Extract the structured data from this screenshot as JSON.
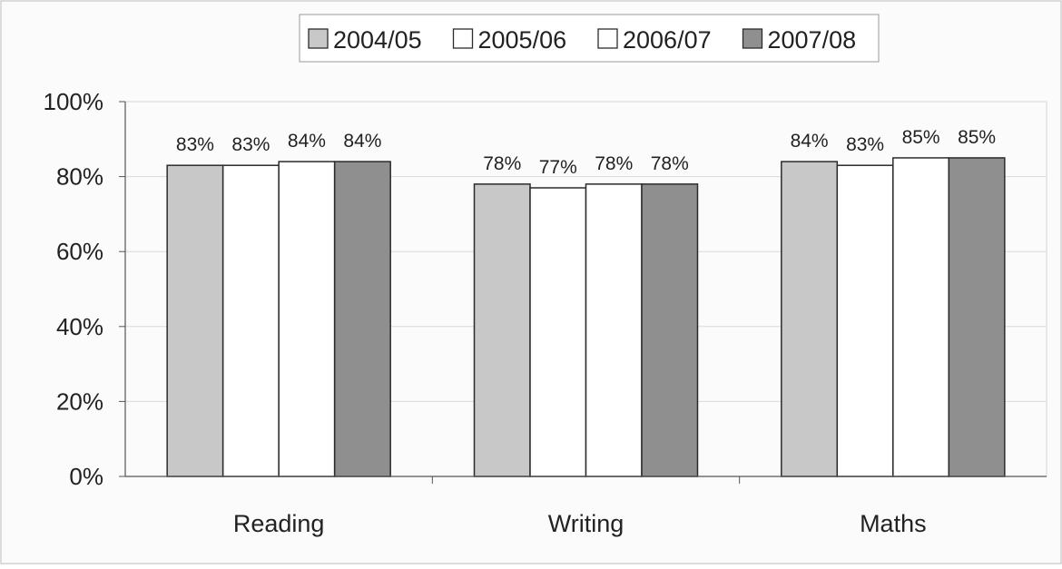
{
  "chart_data": {
    "type": "bar",
    "categories": [
      "Reading",
      "Writing",
      "Maths"
    ],
    "series": [
      {
        "name": "2004/05",
        "values": [
          83,
          78,
          84
        ],
        "labels": [
          "83%",
          "78%",
          "84%"
        ],
        "color": "#c8c8c8"
      },
      {
        "name": "2005/06",
        "values": [
          83,
          77,
          83
        ],
        "labels": [
          "83%",
          "77%",
          "83%"
        ],
        "color": "#ffffff"
      },
      {
        "name": "2006/07",
        "values": [
          84,
          78,
          85
        ],
        "labels": [
          "84%",
          "78%",
          "85%"
        ],
        "color": "#ffffff"
      },
      {
        "name": "2007/08",
        "values": [
          84,
          78,
          85
        ],
        "labels": [
          "84%",
          "78%",
          "85%"
        ],
        "color": "#8f8f8f"
      }
    ],
    "ylim": [
      0,
      100
    ],
    "yticks": [
      0,
      20,
      40,
      60,
      80,
      100
    ],
    "ytick_labels": [
      "0%",
      "20%",
      "40%",
      "60%",
      "80%",
      "100%"
    ],
    "legend_position": "top",
    "grid": true
  }
}
